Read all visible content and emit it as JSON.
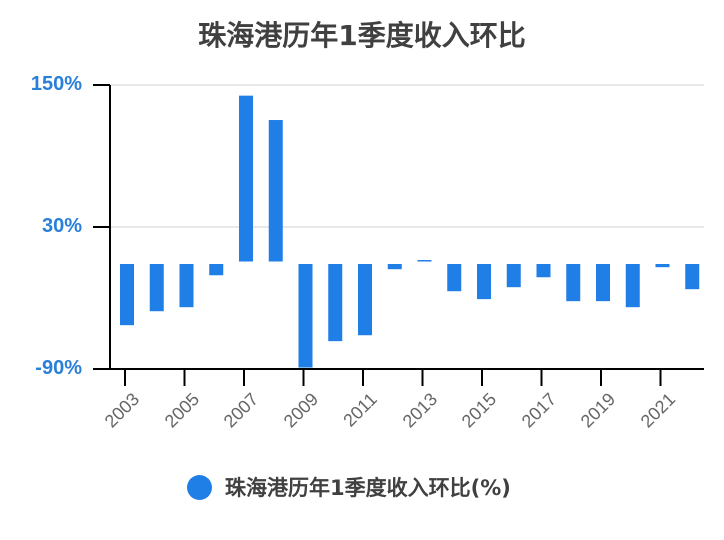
{
  "title": "珠海港历年1季度收入环比",
  "legend": {
    "label": "珠海港历年1季度收入环比(%)",
    "color": "#1f7fe6"
  },
  "y_axis": {
    "ticks": [
      "150%",
      "30%",
      "-90%"
    ]
  },
  "x_axis": {
    "tick_labels": [
      "2003",
      "2005",
      "2007",
      "2009",
      "2011",
      "2013",
      "2015",
      "2017",
      "2019",
      "2021"
    ]
  },
  "colors": {
    "bar": "#1f7fe6",
    "title": "#404040",
    "y_label": "#2a7fd8",
    "x_label": "#666666",
    "grid": "#e0e0e0",
    "axis": "#000000"
  },
  "chart_data": {
    "type": "bar",
    "title": "珠海港历年1季度收入环比",
    "xlabel": "",
    "ylabel": "",
    "categories": [
      "2003",
      "2004",
      "2005",
      "2006",
      "2007",
      "2008",
      "2009",
      "2010",
      "2011",
      "2012",
      "2013",
      "2014",
      "2015",
      "2016",
      "2017",
      "2018",
      "2019",
      "2020",
      "2021",
      "2022"
    ],
    "series": [
      {
        "name": "珠海港历年1季度收入环比(%)",
        "values": [
          -51.7,
          -39.9,
          -36.5,
          -9.5,
          141.0,
          120.4,
          -87.5,
          -65.2,
          -60.2,
          -4.4,
          2.1,
          -23.0,
          -29.7,
          -19.6,
          -11.2,
          -31.4,
          -31.4,
          -36.5,
          -2.7,
          -21.3
        ]
      }
    ],
    "ylim": [
      -90,
      150
    ],
    "yticks": [
      -90,
      30,
      150
    ],
    "grid": true,
    "legend_position": "bottom"
  }
}
